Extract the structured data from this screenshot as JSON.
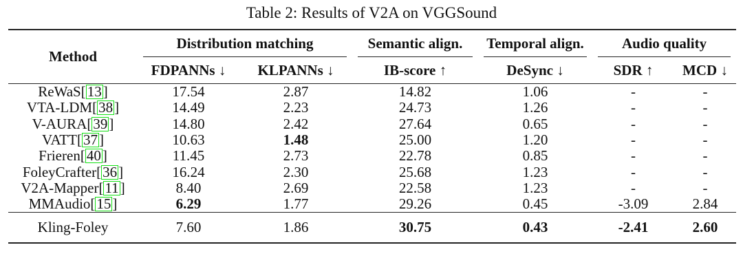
{
  "caption": "Table 2: Results of V2A on VGGSound",
  "header": {
    "method": "Method",
    "groups": [
      "Distribution matching",
      "Semantic align.",
      "Temporal align.",
      "Audio quality"
    ],
    "metrics": [
      "FDPANNs ↓",
      "KLPANNs ↓",
      "IB-score ↑",
      "DeSync ↓",
      "SDR ↑",
      "MCD ↓"
    ]
  },
  "rows": [
    {
      "name": "ReWaS",
      "cite": "13",
      "fd": "17.54",
      "kl": "2.87",
      "ib": "14.82",
      "desync": "1.06",
      "sdr": "-",
      "mcd": "-"
    },
    {
      "name": "VTA-LDM",
      "cite": "38",
      "fd": "14.49",
      "kl": "2.23",
      "ib": "24.73",
      "desync": "1.26",
      "sdr": "-",
      "mcd": "-"
    },
    {
      "name": "V-AURA",
      "cite": "39",
      "fd": "14.80",
      "kl": "2.42",
      "ib": "27.64",
      "desync": "0.65",
      "sdr": "-",
      "mcd": "-"
    },
    {
      "name": "VATT",
      "cite": "37",
      "fd": "10.63",
      "kl": "1.48",
      "ib": "25.00",
      "desync": "1.20",
      "sdr": "-",
      "mcd": "-"
    },
    {
      "name": "Frieren",
      "cite": "40",
      "fd": "11.45",
      "kl": "2.73",
      "ib": "22.78",
      "desync": "0.85",
      "sdr": "-",
      "mcd": "-"
    },
    {
      "name": "FoleyCrafter",
      "cite": "36",
      "fd": "16.24",
      "kl": "2.30",
      "ib": "25.68",
      "desync": "1.23",
      "sdr": "-",
      "mcd": "-"
    },
    {
      "name": "V2A-Mapper",
      "cite": "11",
      "fd": "8.40",
      "kl": "2.69",
      "ib": "22.58",
      "desync": "1.23",
      "sdr": "-",
      "mcd": "-"
    },
    {
      "name": "MMAudio",
      "cite": "15",
      "fd": "6.29",
      "kl": "1.77",
      "ib": "29.26",
      "desync": "0.45",
      "sdr": "-3.09",
      "mcd": "2.84"
    }
  ],
  "ours": {
    "name": "Kling-Foley",
    "fd": "7.60",
    "kl": "1.86",
    "ib": "30.75",
    "desync": "0.43",
    "sdr": "-2.41",
    "mcd": "2.60"
  },
  "colors": {
    "cite_box": "#14e014"
  }
}
